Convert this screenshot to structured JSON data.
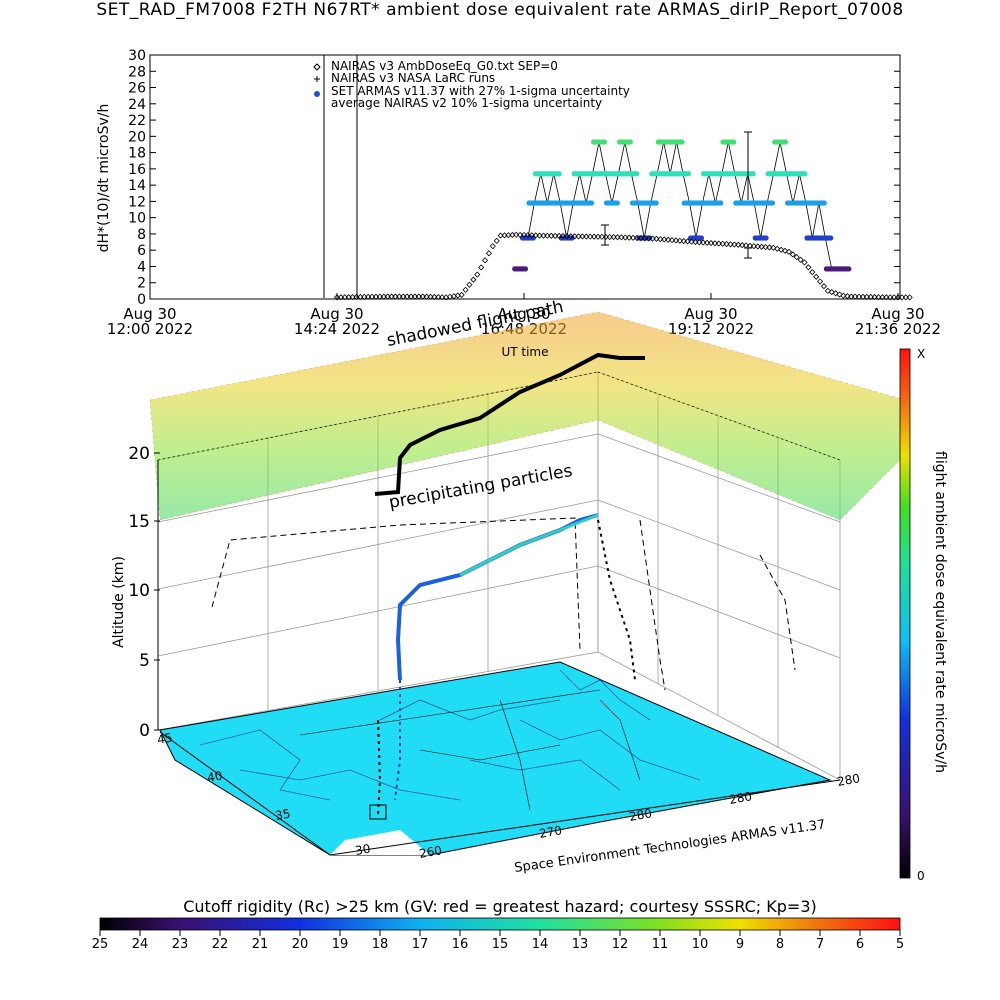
{
  "title": "SET_RAD_FM7008  F2TH N67RT* ambient dose equivalent rate ARMAS_dirIP_Report_07008",
  "chart_data": [
    {
      "type": "scatter",
      "ylabel": "dH*(10)/dt microSv/h",
      "xlabel": "UT time",
      "ylim": [
        0,
        30
      ],
      "yticks": [
        "0",
        "2",
        "4",
        "6",
        "8",
        "10",
        "12",
        "14",
        "16",
        "18",
        "20",
        "22",
        "24",
        "26",
        "28",
        "30"
      ],
      "xticks": [
        {
          "line1": "Aug 30",
          "line2": "12:00 2022"
        },
        {
          "line1": "Aug 30",
          "line2": "14:24 2022"
        },
        {
          "line1": "Aug 30",
          "line2": "16:48 2022"
        },
        {
          "line1": "Aug 30",
          "line2": "19:12 2022"
        },
        {
          "line1": "Aug 30",
          "line2": "21:36 2022"
        }
      ],
      "legend": [
        {
          "symbol": "diamond",
          "label": "NAIRAS v3 AmbDoseEq_G0.txt SEP=0"
        },
        {
          "symbol": "plus",
          "label": "NAIRAS v3 NASA LaRC runs"
        },
        {
          "symbol": "dot",
          "color": "#1e50d2",
          "label": "SET ARMAS v11.37 with 27% 1-sigma uncertainty"
        },
        {
          "symbol": "none",
          "label": "average NAIRAS v2 10% 1-sigma uncertainty"
        }
      ],
      "nairas_series": {
        "x": [
          14.4,
          15.0,
          15.5,
          15.8,
          16.0,
          16.2,
          16.4,
          16.5,
          16.7,
          17.0,
          17.5,
          18.0,
          18.5,
          19.0,
          19.5,
          20.0,
          20.2,
          20.4,
          20.5,
          20.7,
          20.9,
          21.0,
          21.5,
          21.8
        ],
        "y": [
          0.2,
          0.3,
          0.3,
          0.2,
          0.5,
          3.0,
          6.5,
          7.8,
          7.9,
          7.8,
          7.7,
          7.6,
          7.4,
          7.0,
          6.7,
          6.3,
          5.8,
          4.5,
          3.3,
          1.0,
          0.4,
          0.3,
          0.2,
          0.2
        ]
      },
      "armas_levels": [
        {
          "value": 3.7,
          "color": "#4a1a7a"
        },
        {
          "value": 7.5,
          "color": "#1f3fcf"
        },
        {
          "value": 11.8,
          "color": "#1a9fe8"
        },
        {
          "value": 15.4,
          "color": "#2de0b8"
        },
        {
          "value": 19.3,
          "color": "#40e070"
        }
      ]
    },
    {
      "type": "scatter",
      "zlabel": "Altitude (km)",
      "zticks": [
        "0",
        "5",
        "10",
        "15",
        "20"
      ],
      "lat_ticks": [
        "45",
        "40",
        "35",
        "30"
      ],
      "lon_ticks": [
        "260",
        "270",
        "280",
        "280",
        "280"
      ],
      "annotations": [
        "shadowed flight path",
        "UT time",
        "precipitating particles",
        "Space Environment Technologies ARMAS v11.37"
      ],
      "colorbar_label": "flight ambient dose equivalent rate microSv/h",
      "colorbar_max": "X",
      "colorbar_min": "0"
    },
    {
      "type": "heatmap",
      "title": "Cutoff rigidity (Rc) >25 km (GV: red = greatest hazard; courtesy SSSRC; Kp=3)",
      "ticks": [
        "25",
        "24",
        "23",
        "22",
        "21",
        "20",
        "19",
        "18",
        "17",
        "16",
        "15",
        "14",
        "13",
        "12",
        "11",
        "10",
        "9",
        "8",
        "7",
        "6",
        "5"
      ]
    }
  ]
}
